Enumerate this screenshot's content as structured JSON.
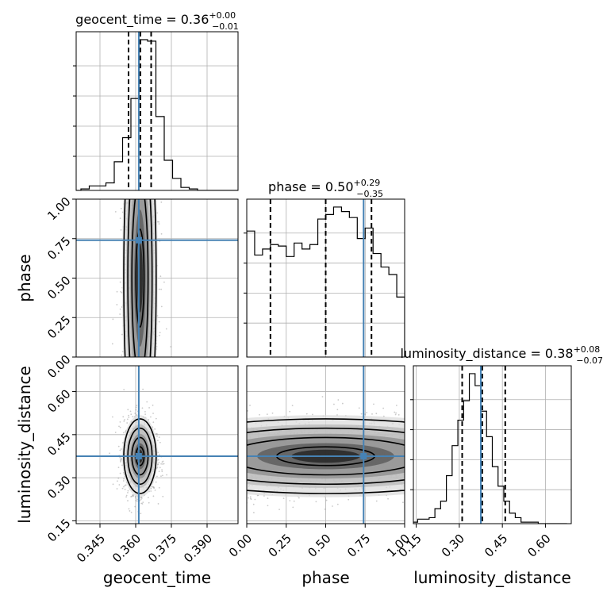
{
  "chart_data": {
    "type": "corner",
    "parameters": [
      "geocent_time",
      "phase",
      "luminosity_distance"
    ],
    "axis_labels": [
      "geocent_time",
      "phase",
      "luminosity_distance"
    ],
    "ranges": [
      [
        0.335,
        0.403
      ],
      [
        0.0,
        1.0
      ],
      [
        0.14,
        0.69
      ]
    ],
    "ticks": {
      "geocent_time": [
        "0.345",
        "0.360",
        "0.375",
        "0.390"
      ],
      "phase": [
        "0.00",
        "0.25",
        "0.50",
        "0.75",
        "1.00"
      ],
      "luminosity_distance": [
        "0.15",
        "0.30",
        "0.45",
        "0.60"
      ]
    },
    "truths": [
      0.3613,
      0.74,
      0.375
    ],
    "quantiles": [
      [
        0.357,
        0.362,
        0.3665
      ],
      [
        0.15,
        0.5,
        0.79
      ],
      [
        0.31,
        0.38,
        0.46
      ]
    ],
    "titles": [
      {
        "param": "geocent_time",
        "value": "0.36",
        "plus": "+0.00",
        "minus": "−0.01"
      },
      {
        "param": "phase",
        "value": "0.50",
        "plus": "+0.29",
        "minus": "−0.35"
      },
      {
        "param": "luminosity_distance",
        "value": "0.38",
        "plus": "+0.08",
        "minus": "−0.07"
      }
    ],
    "histograms": [
      {
        "param": "geocent_time",
        "edges_start": 0.3335,
        "bin_width": 0.0035,
        "counts": [
          0,
          1,
          3,
          3,
          5,
          19,
          35,
          61,
          100,
          99,
          49,
          20,
          8,
          2,
          1,
          0,
          0,
          0,
          0,
          0
        ]
      },
      {
        "param": "phase",
        "edges_start": 0.0,
        "bin_width": 0.05,
        "counts": [
          84,
          68,
          72,
          75,
          74,
          67,
          76,
          72,
          75,
          92,
          95,
          100,
          97,
          93,
          79,
          86,
          69,
          60,
          55,
          40
        ]
      },
      {
        "param": "luminosity_distance",
        "edges_start": 0.135,
        "bin_width": 0.02,
        "counts": [
          1,
          3,
          3,
          4,
          10,
          15,
          32,
          52,
          69,
          82,
          100,
          92,
          75,
          58,
          38,
          25,
          15,
          7,
          4,
          1,
          1,
          1,
          0,
          0,
          0,
          0,
          0
        ]
      }
    ],
    "grid": true,
    "colors": {
      "truth": "#4682b4",
      "line": "#000000",
      "grid": "#b0b0b0",
      "scatter": "#8a8a8a"
    }
  }
}
